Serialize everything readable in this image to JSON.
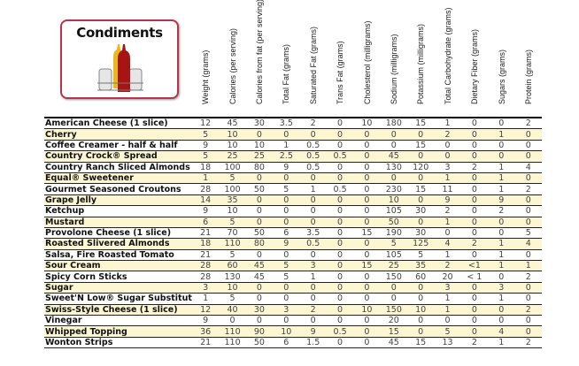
{
  "title": "Condiments",
  "colors": {
    "stripe": "#fcf6d2",
    "logo_border": "#b8344a"
  },
  "columns": [
    "Weight (grams)",
    "Calories (per serving)",
    "Calories from fat (per serving)",
    "Total Fat (grams)",
    "Saturated Fat (grams)",
    "Trans Fat (grams)",
    "Cholesterol (milligrams)",
    "Sodium (milligrams)",
    "Potassium (milligrams)",
    "Total Carbohydrate (grams)",
    "Dietary Fiber (grams)",
    "Sugars (grams)",
    "Protein (grams)"
  ],
  "rows": [
    {
      "name": "American Cheese (1 slice)",
      "values": [
        "12",
        "45",
        "30",
        "3.5",
        "2",
        "0",
        "10",
        "180",
        "15",
        "1",
        "0",
        "0",
        "2"
      ]
    },
    {
      "name": "Cherry",
      "values": [
        "5",
        "10",
        "0",
        "0",
        "0",
        "0",
        "0",
        "0",
        "0",
        "2",
        "0",
        "1",
        "0"
      ]
    },
    {
      "name": "Coffee Creamer - half & half",
      "values": [
        "9",
        "10",
        "10",
        "1",
        "0.5",
        "0",
        "0",
        "0",
        "15",
        "0",
        "0",
        "0",
        "0"
      ]
    },
    {
      "name": "Country Crock® Spread",
      "values": [
        "5",
        "25",
        "25",
        "2.5",
        "0.5",
        "0.5",
        "0",
        "45",
        "0",
        "0",
        "0",
        "0",
        "0"
      ]
    },
    {
      "name": "Country Ranch Sliced Almonds",
      "values": [
        "18",
        "100",
        "80",
        "9",
        "0.5",
        "0",
        "0",
        "130",
        "120",
        "3",
        "2",
        "1",
        "4"
      ]
    },
    {
      "name": "Equal® Sweetener",
      "values": [
        "1",
        "5",
        "0",
        "0",
        "0",
        "0",
        "0",
        "0",
        "0",
        "1",
        "0",
        "1",
        "0"
      ]
    },
    {
      "name": "Gourmet Seasoned Croutons",
      "values": [
        "28",
        "100",
        "50",
        "5",
        "1",
        "0.5",
        "0",
        "230",
        "15",
        "11",
        "0",
        "1",
        "2"
      ]
    },
    {
      "name": "Grape Jelly",
      "values": [
        "14",
        "35",
        "0",
        "0",
        "0",
        "0",
        "0",
        "10",
        "0",
        "9",
        "0",
        "9",
        "0"
      ]
    },
    {
      "name": "Ketchup",
      "values": [
        "9",
        "10",
        "0",
        "0",
        "0",
        "0",
        "0",
        "105",
        "30",
        "2",
        "0",
        "2",
        "0"
      ]
    },
    {
      "name": "Mustard",
      "values": [
        "6",
        "5",
        "0",
        "0",
        "0",
        "0",
        "0",
        "50",
        "0",
        "1",
        "0",
        "0",
        "0"
      ]
    },
    {
      "name": "Provolone Cheese (1 slice)",
      "values": [
        "21",
        "70",
        "50",
        "6",
        "3.5",
        "0",
        "15",
        "190",
        "30",
        "0",
        "0",
        "0",
        "5"
      ]
    },
    {
      "name": "Roasted Slivered Almonds",
      "values": [
        "18",
        "110",
        "80",
        "9",
        "0.5",
        "0",
        "0",
        "5",
        "125",
        "4",
        "2",
        "1",
        "4"
      ]
    },
    {
      "name": "Salsa, Fire Roasted Tomato",
      "values": [
        "21",
        "5",
        "0",
        "0",
        "0",
        "0",
        "0",
        "105",
        "5",
        "1",
        "0",
        "1",
        "0"
      ]
    },
    {
      "name": "Sour Cream",
      "values": [
        "28",
        "60",
        "45",
        "5",
        "3",
        "0",
        "15",
        "25",
        "35",
        "2",
        "<1",
        "1",
        "1"
      ]
    },
    {
      "name": "Spicy Corn Sticks",
      "values": [
        "28",
        "130",
        "45",
        "5",
        "1",
        "0",
        "0",
        "150",
        "60",
        "20",
        "< 1",
        "0",
        "2"
      ]
    },
    {
      "name": "Sugar",
      "values": [
        "3",
        "10",
        "0",
        "0",
        "0",
        "0",
        "0",
        "0",
        "0",
        "3",
        "0",
        "3",
        "0"
      ]
    },
    {
      "name": "Sweet'N Low® Sugar Substitute",
      "values": [
        "1",
        "5",
        "0",
        "0",
        "0",
        "0",
        "0",
        "0",
        "0",
        "1",
        "0",
        "1",
        "0"
      ]
    },
    {
      "name": "Swiss-Style Cheese (1 slice)",
      "values": [
        "12",
        "40",
        "30",
        "3",
        "2",
        "0",
        "10",
        "150",
        "10",
        "1",
        "0",
        "0",
        "2"
      ]
    },
    {
      "name": "Vinegar",
      "values": [
        "9",
        "0",
        "0",
        "0",
        "0",
        "0",
        "0",
        "20",
        "0",
        "0",
        "0",
        "0",
        "0"
      ]
    },
    {
      "name": "Whipped Topping",
      "values": [
        "36",
        "110",
        "90",
        "10",
        "9",
        "0.5",
        "0",
        "15",
        "0",
        "5",
        "0",
        "4",
        "0"
      ]
    },
    {
      "name": "Wonton Strips",
      "values": [
        "21",
        "110",
        "50",
        "6",
        "1.5",
        "0",
        "0",
        "45",
        "15",
        "13",
        "2",
        "1",
        "2"
      ]
    }
  ]
}
